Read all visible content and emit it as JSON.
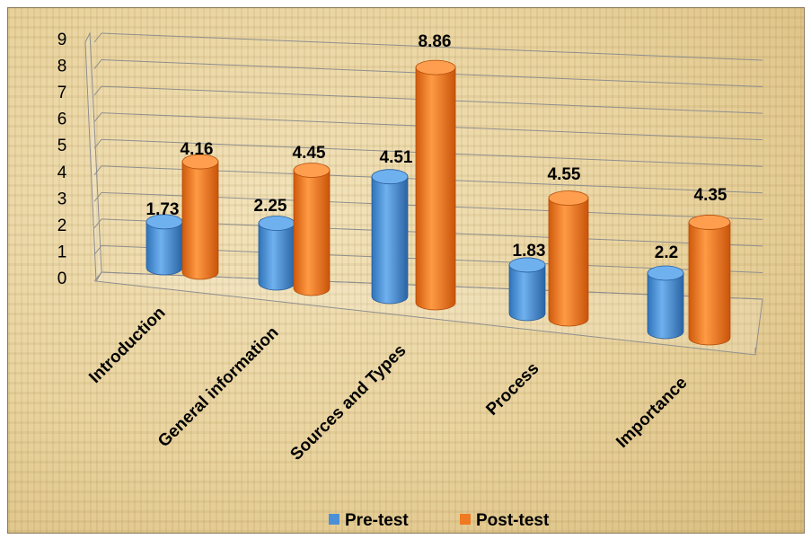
{
  "chart_data": {
    "type": "bar",
    "style": "3d-cylinder",
    "title": "",
    "xlabel": "",
    "ylabel": "",
    "categories": [
      "Introduction",
      "General information",
      "Sources and Types",
      "Process",
      "Importance"
    ],
    "series": [
      {
        "name": "Pre-test",
        "values": [
          1.73,
          2.25,
          4.51,
          1.83,
          2.2
        ],
        "labels": [
          "1.73",
          "2.25",
          "4.51",
          "1.83",
          "2.2"
        ],
        "color": "#4a90d6"
      },
      {
        "name": "Post-test",
        "values": [
          4.16,
          4.45,
          8.86,
          4.55,
          4.35
        ],
        "labels": [
          "4.16",
          "4.45",
          "8.86",
          "4.55",
          "4.35"
        ],
        "color": "#ef7a22"
      }
    ],
    "ylim": [
      0,
      9
    ],
    "yticks": [
      "0",
      "1",
      "2",
      "3",
      "4",
      "5",
      "6",
      "7",
      "8",
      "9"
    ],
    "grid": true,
    "legend_position": "bottom",
    "background": "parchment"
  }
}
